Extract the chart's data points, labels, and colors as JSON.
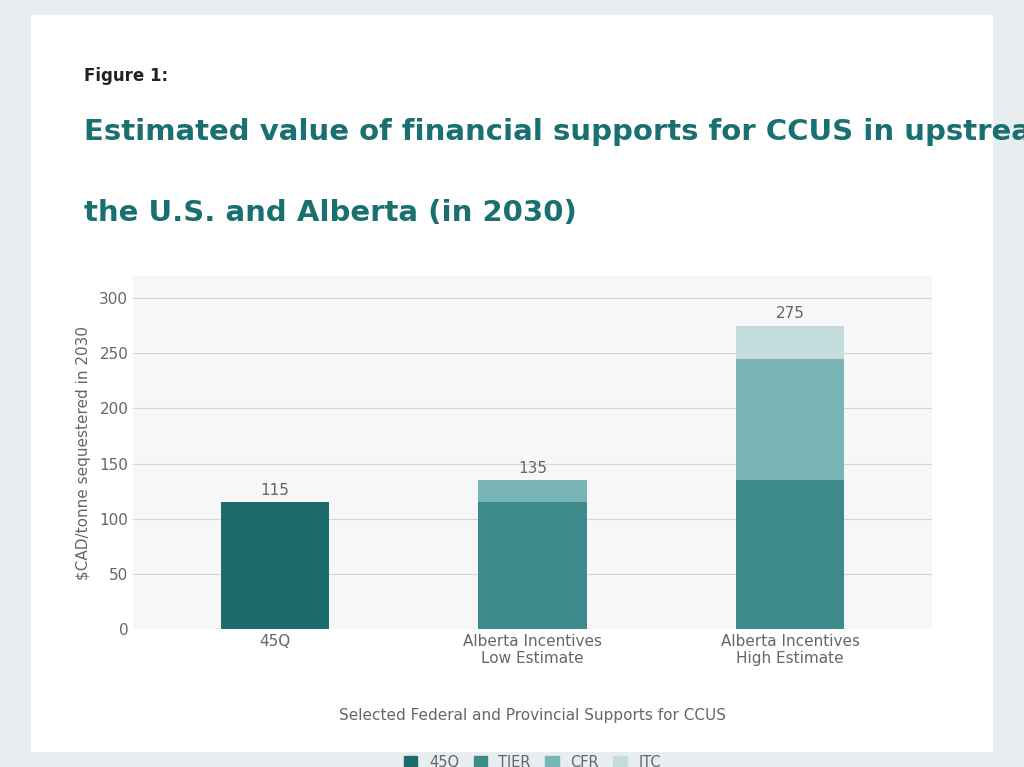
{
  "figure_label": "Figure 1:",
  "title_line1": "Estimated value of financial supports for CCUS in upstream oil production in",
  "title_line2": "the U.S. and Alberta (in 2030)",
  "xlabel": "Selected Federal and Provincial Supports for CCUS",
  "ylabel": "$CAD/tonne sequestered in 2030",
  "categories": [
    "45Q",
    "Alberta Incentives\nLow Estimate",
    "Alberta Incentives\nHigh Estimate"
  ],
  "segments": {
    "45Q": [
      115,
      0,
      0
    ],
    "TIER": [
      0,
      115,
      135
    ],
    "CFR": [
      0,
      20,
      110
    ],
    "ITC": [
      0,
      0,
      30
    ]
  },
  "totals": [
    115,
    135,
    275
  ],
  "colors": {
    "45Q": "#1e6b6b",
    "TIER": "#3d8a8a",
    "CFR": "#7ab5b5",
    "ITC": "#c5dcdc"
  },
  "ylim": [
    0,
    320
  ],
  "yticks": [
    0,
    50,
    100,
    150,
    200,
    250,
    300
  ],
  "bar_width": 0.42,
  "outer_bg": "#e8eef0",
  "card_bg": "#ffffff",
  "plot_bg": "#f5f7f8",
  "title_color": "#1a7070",
  "title_fontsize": 21,
  "figure_label_fontsize": 12,
  "axis_label_fontsize": 11,
  "tick_label_fontsize": 11,
  "legend_fontsize": 10.5,
  "annotation_fontsize": 11,
  "text_color": "#666666",
  "grid_color": "#d0d5d5"
}
